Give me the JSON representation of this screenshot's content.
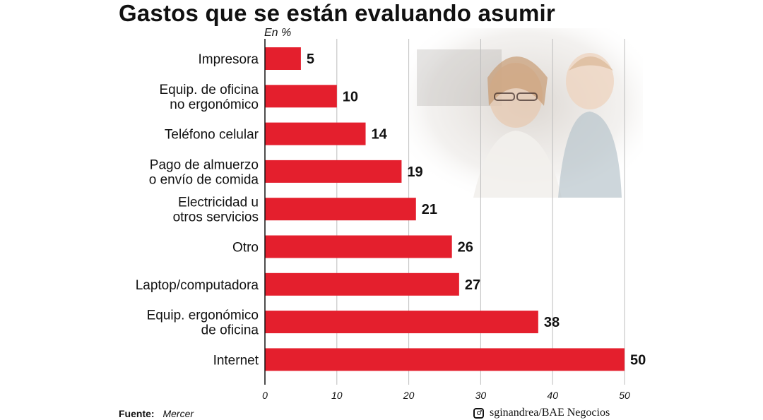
{
  "chart_data": {
    "type": "bar",
    "orientation": "horizontal",
    "title": "Gastos que se están evaluando asumir",
    "unit_label": "En %",
    "categories": [
      [
        "Impresora"
      ],
      [
        "Equip. de oficina",
        "no ergonómico"
      ],
      [
        "Teléfono celular"
      ],
      [
        "Pago de almuerzo",
        "o envío de comida"
      ],
      [
        "Electricidad u",
        "otros servicios"
      ],
      [
        "Otro"
      ],
      [
        "Laptop/computadora"
      ],
      [
        "Equip. ergonómico",
        "de oficina"
      ],
      [
        "Internet"
      ]
    ],
    "values": [
      5,
      10,
      14,
      19,
      21,
      26,
      27,
      38,
      50
    ],
    "xlim": [
      0,
      50
    ],
    "xticks": [
      0,
      10,
      20,
      30,
      40,
      50
    ],
    "grid": true,
    "bar_color": "#e41f2d"
  },
  "footer": {
    "source_label": "Fuente:",
    "source_value": "Mercer",
    "credit": "sginandrea/BAE Negocios",
    "credit_icon": "instagram-icon"
  }
}
